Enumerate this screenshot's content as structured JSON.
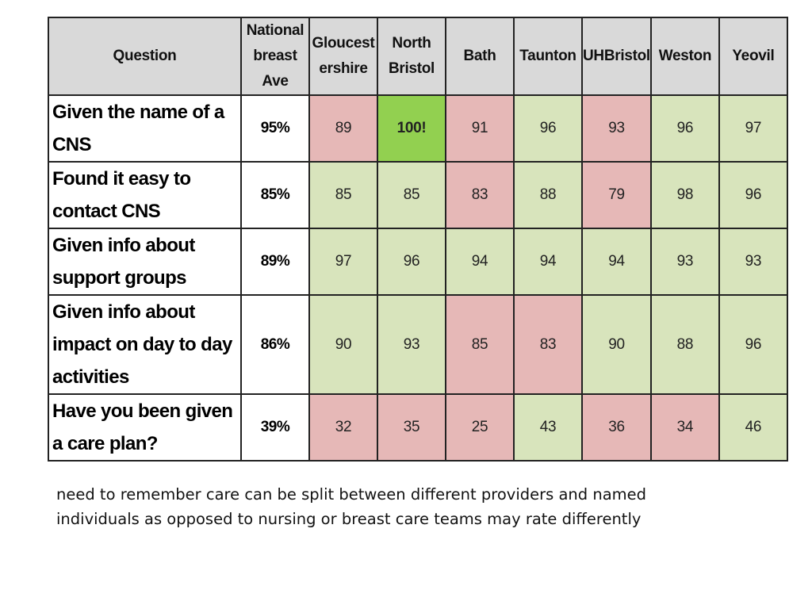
{
  "table": {
    "headers": {
      "question": "Question",
      "columns": [
        [
          "National",
          "breast",
          "Ave"
        ],
        [
          "Gloucest",
          "ershire"
        ],
        [
          "North",
          "Bristol"
        ],
        [
          "Bath"
        ],
        [
          "Taunton"
        ],
        [
          "UHBristol"
        ],
        [
          "Weston"
        ],
        [
          "Yeovil"
        ]
      ]
    },
    "rows": [
      {
        "question": [
          "Given the name of a",
          "CNS"
        ],
        "national_ave": "95%",
        "values": [
          "89",
          "100!",
          "91",
          "96",
          "93",
          "96",
          "97"
        ],
        "status": [
          "pink",
          "best",
          "pink",
          "green",
          "pink",
          "green",
          "green"
        ]
      },
      {
        "question": [
          "Found it easy to",
          "contact CNS"
        ],
        "national_ave": "85%",
        "values": [
          "85",
          "85",
          "83",
          "88",
          "79",
          "98",
          "96"
        ],
        "status": [
          "green",
          "green",
          "pink",
          "green",
          "pink",
          "green",
          "green"
        ]
      },
      {
        "question": [
          "Given info about",
          "support groups"
        ],
        "national_ave": "89%",
        "values": [
          "97",
          "96",
          "94",
          "94",
          "94",
          "93",
          "93"
        ],
        "status": [
          "green",
          "green",
          "green",
          "green",
          "green",
          "green",
          "green"
        ]
      },
      {
        "question": [
          "Given info about",
          "impact on day to day",
          "activities"
        ],
        "national_ave": "86%",
        "values": [
          "90",
          "93",
          "85",
          "83",
          "90",
          "88",
          "96"
        ],
        "status": [
          "green",
          "green",
          "pink",
          "pink",
          "green",
          "green",
          "green"
        ]
      },
      {
        "question": [
          "Have you been given",
          "a care plan?"
        ],
        "national_ave": "39%",
        "values": [
          "32",
          "35",
          "25",
          "43",
          "36",
          "34",
          "46"
        ],
        "status": [
          "pink",
          "pink",
          "pink",
          "green",
          "pink",
          "pink",
          "green"
        ]
      }
    ]
  },
  "colors": {
    "header_bg": "#d9d9d9",
    "above_average": "#d8e4bc",
    "below_average": "#e6b8b7",
    "best": "#92d050"
  },
  "note": [
    "need to remember care can be split between different providers and named",
    "individuals as opposed to nursing or breast care teams may rate differently"
  ]
}
